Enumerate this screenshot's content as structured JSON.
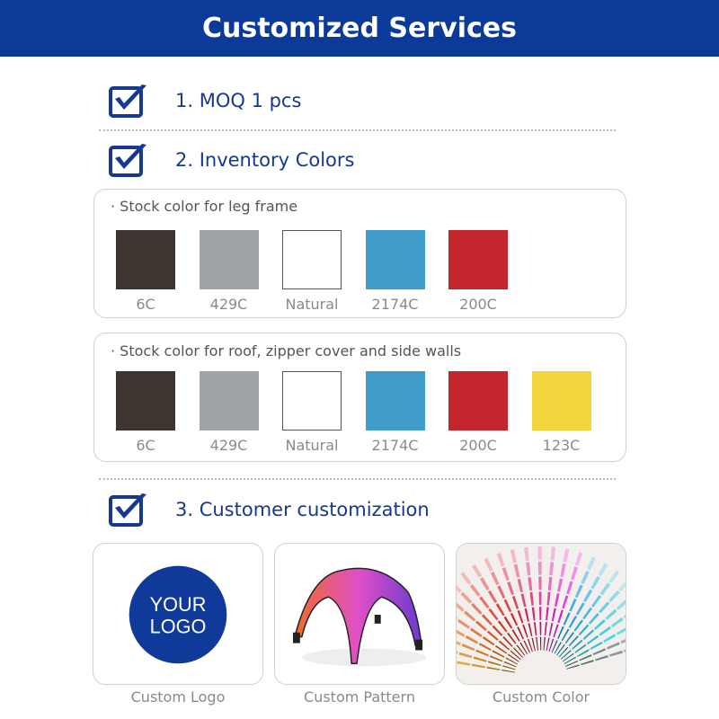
{
  "header": {
    "title": "Customized Services",
    "color": "#0b3a98"
  },
  "items": [
    {
      "label": "1. MOQ  1 pcs",
      "icon": "checkbox-checked-icon"
    },
    {
      "label": "2. Inventory Colors",
      "icon": "checkbox-checked-icon"
    },
    {
      "label": "3. Customer customization",
      "icon": "checkbox-checked-icon"
    }
  ],
  "leg_frame": {
    "label": "· Stock color for leg frame",
    "swatches": [
      {
        "name": "6C",
        "color": "#3d3530"
      },
      {
        "name": "429C",
        "color": "#a0a4a8"
      },
      {
        "name": "Natural",
        "color": "#ffffff"
      },
      {
        "name": "2174C",
        "color": "#3f9ccb"
      },
      {
        "name": "200C",
        "color": "#c4262e"
      }
    ]
  },
  "roof": {
    "label": "· Stock color for roof, zipper cover and side walls",
    "swatches": [
      {
        "name": "6C",
        "color": "#3d3530"
      },
      {
        "name": "429C",
        "color": "#a0a4a8"
      },
      {
        "name": "Natural",
        "color": "#ffffff"
      },
      {
        "name": "2174C",
        "color": "#3f9ccb"
      },
      {
        "name": "200C",
        "color": "#c4262e"
      },
      {
        "name": "123C",
        "color": "#f2d53c"
      }
    ]
  },
  "cards": [
    {
      "label": "Custom Logo",
      "logo_text_1": "YOUR",
      "logo_text_2": "LOGO"
    },
    {
      "label": "Custom Pattern"
    },
    {
      "label": "Custom Color"
    }
  ]
}
